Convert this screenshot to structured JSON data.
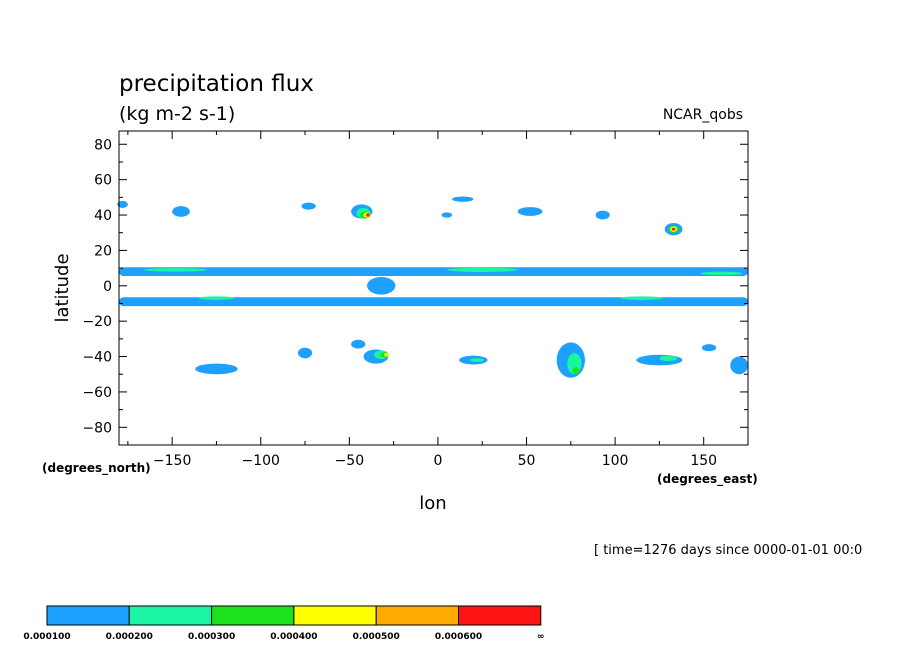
{
  "header": {
    "title": "precipitation flux",
    "units": "(kg m-2 s-1)",
    "dataset": "NCAR_qobs"
  },
  "footer": {
    "time_note": "[ time=1276 days since 0000-01-01 00:0"
  },
  "chart_data": {
    "type": "heatmap",
    "title": "precipitation flux",
    "units": "(kg m-2 s-1)",
    "xlabel": "lon",
    "ylabel": "latitude",
    "x_units": "(degrees_east)",
    "y_units": "(degrees_north)",
    "xlim": [
      -180,
      175
    ],
    "ylim": [
      -90,
      87.5
    ],
    "x_ticks": [
      -150,
      -100,
      -50,
      0,
      50,
      100,
      150
    ],
    "y_ticks": [
      80,
      60,
      40,
      20,
      0,
      -20,
      -40,
      -60,
      -80
    ],
    "legend": {
      "position": "bottom-left",
      "colors": [
        "#1ea0ff",
        "#19f5a0",
        "#1ee11e",
        "#ffff00",
        "#ffaa00",
        "#ff1414"
      ],
      "bounds": [
        "0.000100",
        "0.000200",
        "0.000300",
        "0.000400",
        "0.000500",
        "0.000600",
        "∞"
      ]
    },
    "regions": [
      {
        "name": "itcz-north",
        "level": 1,
        "shape": "band",
        "lon_start": -180,
        "lon_end": 175,
        "lat": 8,
        "half_width": 2.5
      },
      {
        "name": "itcz-south",
        "level": 1,
        "shape": "band",
        "lon_start": -180,
        "lon_end": 175,
        "lat": -9,
        "half_width": 2.5
      },
      {
        "name": "itcz-north-core-1",
        "level": 2,
        "shape": "ellipse",
        "lon": -148,
        "lat": 9,
        "rlon": 18,
        "rlat": 1
      },
      {
        "name": "itcz-north-core-2",
        "level": 2,
        "shape": "ellipse",
        "lon": 25,
        "lat": 9,
        "rlon": 20,
        "rlat": 1.2
      },
      {
        "name": "itcz-north-core-3",
        "level": 2,
        "shape": "ellipse",
        "lon": 160,
        "lat": 7,
        "rlon": 12,
        "rlat": 1
      },
      {
        "name": "itcz-south-core-1",
        "level": 2,
        "shape": "ellipse",
        "lon": -125,
        "lat": -7,
        "rlon": 10,
        "rlat": 1
      },
      {
        "name": "itcz-south-core-2",
        "level": 2,
        "shape": "ellipse",
        "lon": 115,
        "lat": -7,
        "rlon": 12,
        "rlat": 1
      },
      {
        "name": "equator-blob",
        "level": 1,
        "shape": "ellipse",
        "lon": -32,
        "lat": 0,
        "rlon": 8,
        "rlat": 5
      },
      {
        "name": "storm-atlantic-north",
        "level": 1,
        "shape": "ellipse",
        "lon": -43,
        "lat": 42,
        "rlon": 6,
        "rlat": 4
      },
      {
        "name": "storm-atlantic-north-l2",
        "level": 2,
        "shape": "ellipse",
        "lon": -42,
        "lat": 41,
        "rlon": 4,
        "rlat": 3
      },
      {
        "name": "storm-atlantic-north-l3",
        "level": 3,
        "shape": "ellipse",
        "lon": -41,
        "lat": 40,
        "rlon": 3,
        "rlat": 2
      },
      {
        "name": "storm-atlantic-north-l4",
        "level": 4,
        "shape": "ellipse",
        "lon": -40,
        "lat": 40,
        "rlon": 2,
        "rlat": 1.5
      },
      {
        "name": "storm-atlantic-north-l6",
        "level": 6,
        "shape": "ellipse",
        "lon": -39.5,
        "lat": 40,
        "rlon": 1,
        "rlat": 1
      },
      {
        "name": "storm-pacific-west",
        "level": 1,
        "shape": "ellipse",
        "lon": 133,
        "lat": 32,
        "rlon": 5,
        "rlat": 3.5
      },
      {
        "name": "storm-pacific-west-l3",
        "level": 3,
        "shape": "ellipse",
        "lon": 133,
        "lat": 32,
        "rlon": 3,
        "rlat": 2
      },
      {
        "name": "storm-pacific-west-l4",
        "level": 4,
        "shape": "ellipse",
        "lon": 133,
        "lat": 32,
        "rlon": 2,
        "rlat": 1.5
      },
      {
        "name": "storm-pacific-west-l6",
        "level": 6,
        "shape": "ellipse",
        "lon": 133,
        "lat": 32,
        "rlon": 1,
        "rlat": 0.8
      },
      {
        "name": "nh-blob-1",
        "level": 1,
        "shape": "ellipse",
        "lon": -178,
        "lat": 46,
        "rlon": 3,
        "rlat": 2
      },
      {
        "name": "nh-blob-2",
        "level": 1,
        "shape": "ellipse",
        "lon": -145,
        "lat": 42,
        "rlon": 5,
        "rlat": 3
      },
      {
        "name": "nh-blob-3",
        "level": 1,
        "shape": "ellipse",
        "lon": -73,
        "lat": 45,
        "rlon": 4,
        "rlat": 2
      },
      {
        "name": "nh-blob-4",
        "level": 1,
        "shape": "ellipse",
        "lon": 14,
        "lat": 49,
        "rlon": 6,
        "rlat": 1.5
      },
      {
        "name": "nh-blob-5",
        "level": 1,
        "shape": "ellipse",
        "lon": 5,
        "lat": 40,
        "rlon": 3,
        "rlat": 1.5
      },
      {
        "name": "nh-blob-6",
        "level": 1,
        "shape": "ellipse",
        "lon": 52,
        "lat": 42,
        "rlon": 7,
        "rlat": 2.5
      },
      {
        "name": "nh-blob-7",
        "level": 1,
        "shape": "ellipse",
        "lon": 93,
        "lat": 40,
        "rlon": 4,
        "rlat": 2.5
      },
      {
        "name": "sh-blob-1",
        "level": 1,
        "shape": "ellipse",
        "lon": -125,
        "lat": -47,
        "rlon": 12,
        "rlat": 3
      },
      {
        "name": "sh-blob-2",
        "level": 1,
        "shape": "ellipse",
        "lon": -75,
        "lat": -38,
        "rlon": 4,
        "rlat": 3
      },
      {
        "name": "sh-blob-3",
        "level": 1,
        "shape": "ellipse",
        "lon": -45,
        "lat": -33,
        "rlon": 4,
        "rlat": 2.5
      },
      {
        "name": "sh-blob-4",
        "level": 1,
        "shape": "ellipse",
        "lon": -35,
        "lat": -40,
        "rlon": 7,
        "rlat": 4
      },
      {
        "name": "sh-blob-4-l2",
        "level": 2,
        "shape": "ellipse",
        "lon": -32,
        "lat": -39,
        "rlon": 4,
        "rlat": 2.5
      },
      {
        "name": "sh-blob-4-l3",
        "level": 3,
        "shape": "ellipse",
        "lon": -30,
        "lat": -39,
        "rlon": 2.5,
        "rlat": 1.5
      },
      {
        "name": "sh-blob-4-l4",
        "level": 4,
        "shape": "ellipse",
        "lon": -29,
        "lat": -39,
        "rlon": 1.5,
        "rlat": 1
      },
      {
        "name": "sh-blob-5",
        "level": 1,
        "shape": "ellipse",
        "lon": 20,
        "lat": -42,
        "rlon": 8,
        "rlat": 2.5
      },
      {
        "name": "sh-blob-5-l2",
        "level": 2,
        "shape": "ellipse",
        "lon": 22,
        "lat": -42,
        "rlon": 4,
        "rlat": 1
      },
      {
        "name": "sh-blob-6",
        "level": 1,
        "shape": "ellipse",
        "lon": 75,
        "lat": -42,
        "rlon": 8,
        "rlat": 10
      },
      {
        "name": "sh-blob-6-l2",
        "level": 2,
        "shape": "ellipse",
        "lon": 77,
        "lat": -44,
        "rlon": 4,
        "rlat": 6
      },
      {
        "name": "sh-blob-6-l3",
        "level": 3,
        "shape": "ellipse",
        "lon": 78,
        "lat": -48,
        "rlon": 2,
        "rlat": 2
      },
      {
        "name": "sh-blob-7",
        "level": 1,
        "shape": "ellipse",
        "lon": 125,
        "lat": -42,
        "rlon": 13,
        "rlat": 3
      },
      {
        "name": "sh-blob-7-l2",
        "level": 2,
        "shape": "ellipse",
        "lon": 130,
        "lat": -41,
        "rlon": 5,
        "rlat": 1.5
      },
      {
        "name": "sh-blob-8",
        "level": 1,
        "shape": "ellipse",
        "lon": 153,
        "lat": -35,
        "rlon": 4,
        "rlat": 2
      },
      {
        "name": "sh-blob-9",
        "level": 1,
        "shape": "ellipse",
        "lon": 170,
        "lat": -45,
        "rlon": 5,
        "rlat": 5
      }
    ]
  }
}
